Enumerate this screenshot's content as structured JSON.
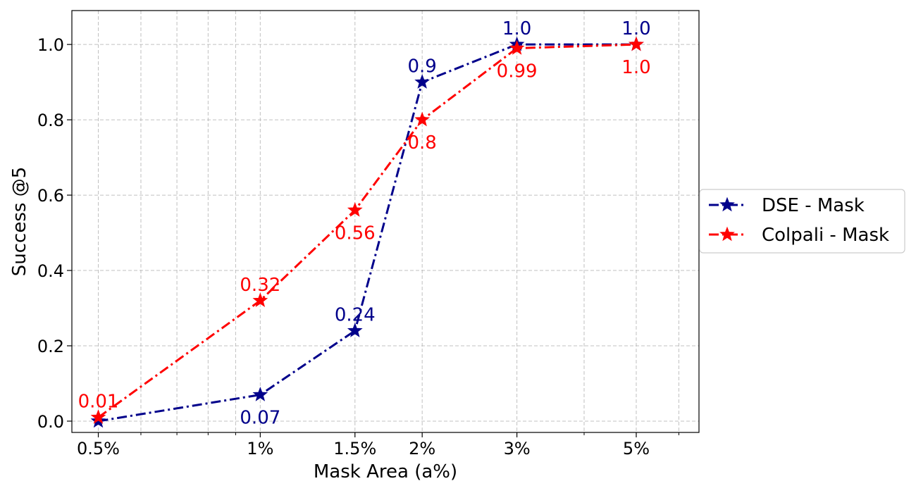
{
  "chart_data": {
    "type": "line",
    "xlabel": "Mask Area (a%)",
    "ylabel": "Success @5",
    "x_scale": "log",
    "x": [
      0.5,
      1,
      1.5,
      2,
      3,
      5
    ],
    "xtick_labels": [
      "0.5%",
      "1%",
      "1.5%",
      "2%",
      "3%",
      "5%"
    ],
    "ylim": [
      -0.03,
      1.09
    ],
    "yticks": [
      0.0,
      0.2,
      0.4,
      0.6,
      0.8,
      1.0
    ],
    "ytick_labels": [
      "0.0",
      "0.2",
      "0.4",
      "0.6",
      "0.8",
      "1.0"
    ],
    "grid": true,
    "legend_position": "right-outside",
    "series": [
      {
        "name": "DSE - Mask",
        "color": "#00008b",
        "marker": "star",
        "line_style": "dash-dot",
        "values": [
          0.0,
          0.07,
          0.24,
          0.9,
          1.0,
          1.0
        ],
        "labels": [
          "",
          "0.07",
          "0.24",
          "0.9",
          "1.0",
          "1.0"
        ],
        "label_pos": [
          "none",
          "below",
          "above",
          "above",
          "above",
          "above"
        ]
      },
      {
        "name": "Colpali - Mask",
        "color": "#ff0000",
        "marker": "star",
        "line_style": "dash-dot",
        "values": [
          0.01,
          0.32,
          0.56,
          0.8,
          0.99,
          1.0
        ],
        "labels": [
          "0.01",
          "0.32",
          "0.56",
          "0.8",
          "0.99",
          "1.0"
        ],
        "label_pos": [
          "above",
          "above",
          "below",
          "below",
          "below",
          "below"
        ]
      }
    ]
  }
}
